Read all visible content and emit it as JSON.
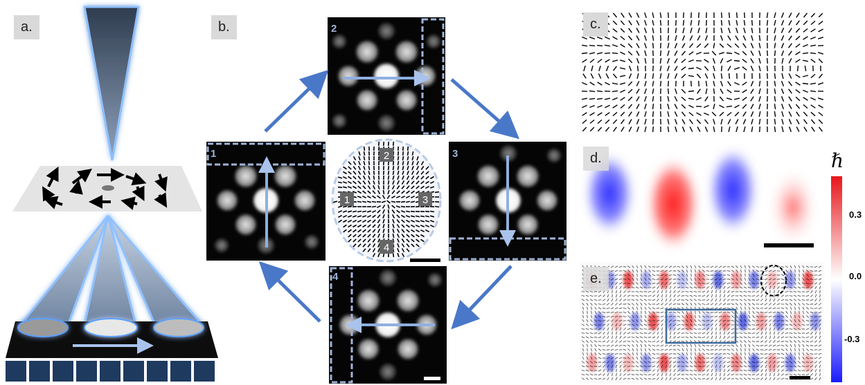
{
  "panels": {
    "a": {
      "label": "a."
    },
    "b": {
      "label": "b.",
      "frames": [
        "1",
        "2",
        "3",
        "4"
      ]
    },
    "c": {
      "label": "c."
    },
    "d": {
      "label": "d."
    },
    "e": {
      "label": "e."
    }
  },
  "colorbar": {
    "symbol": "ℏ",
    "ticks": [
      "0.3",
      "0.0",
      "-0.3"
    ],
    "colors": {
      "top": "#e8161b",
      "mid": "#ffffff",
      "bottom": "#1a1aff"
    }
  },
  "colors": {
    "arrow_blue": "#4a78c8",
    "dashed_box": "#9fb4d8",
    "glow": "#9fc1ff",
    "beam": "#6f84a0"
  }
}
